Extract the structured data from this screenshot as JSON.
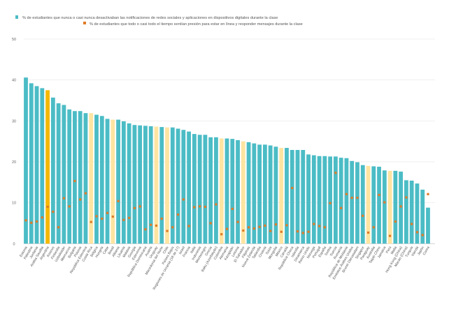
{
  "chart_data": {
    "type": "bar",
    "title": "",
    "xlabel": "",
    "ylabel": "",
    "ylim": [
      0,
      50
    ],
    "yticks": [
      0,
      10,
      20,
      30,
      40,
      50
    ],
    "grid": true,
    "legend_placement": "top-left",
    "colors": {
      "bar": "#4bbcc5",
      "bar_highlight": "#f5b800",
      "bar_region": "#fde4a1",
      "marker": "#e07b28"
    },
    "highlight_categories": [
      "Argentina"
    ],
    "region_categories": [
      "Costa Rica",
      "Brasil",
      "Uruguay",
      "Chile",
      "Colombia",
      "El Salvador",
      "México",
      "Paraguay",
      "Perú"
    ],
    "categories": [
      "Estonia",
      "Palestina",
      "Jordania",
      "Arabia Saudita",
      "Argentina",
      "Kosovo",
      "Finlandia",
      "Uzbekistán",
      "Marruecos",
      "Bulgaria",
      "Polonia",
      "República Eslovaca",
      "Costa Rica",
      "Bélgica",
      "Hungría",
      "Catar",
      "Brasil",
      "Albania",
      "Lituania",
      "Malasia",
      "Georgia",
      "Eslovenia",
      "República Dominicana",
      "Austria",
      "Uruguay",
      "Macedonia del Norte",
      "Chile",
      "Países Bajos",
      "Regiones de Ucrania (18 de 27)",
      "Israel",
      "Francia",
      "Italia",
      "Indonesia",
      "Montenegro",
      "Grecia",
      "Baku (Azerbaiyán)",
      "Colombia",
      "Alemania",
      "Kazajstán",
      "Letonia",
      "El Salvador",
      "Filipinas",
      "Nueva Zelanda",
      "Tailandia",
      "Croacia",
      "Suiza",
      "Mongolia",
      "México",
      "Canadá",
      "República Checa",
      "Islandia",
      "Dinamarca",
      "Reino Unido",
      "Noruega",
      "Portugal",
      "España",
      "Serbia",
      "Suecia",
      "Rumanía",
      "República de Moldavia",
      "Emiratos Árabes Unidos",
      "Brunei Darussalam",
      "Singapur",
      "Paraguay",
      "Australia",
      "Taipéi Chino",
      "Jamaica",
      "Perú",
      "Malta",
      "Hong Kong (China)",
      "Macao (China)",
      "Turquía",
      "Irlanda",
      "Japón",
      "Corea"
    ],
    "series": [
      {
        "name": "% de estudiantes que nunca o casi nunca desactivaban las notificaciones de redes sociales y aplicaciones en dispositivos digitales durante la clase",
        "type": "bar",
        "values": [
          40.6,
          39.2,
          38.5,
          38.0,
          37.5,
          35.7,
          34.3,
          33.9,
          32.8,
          32.4,
          32.4,
          31.9,
          31.9,
          31.5,
          31.2,
          30.5,
          30.3,
          30.3,
          29.9,
          29.4,
          29.0,
          28.9,
          28.8,
          28.7,
          28.6,
          28.5,
          28.4,
          28.4,
          28.1,
          27.8,
          27.4,
          26.8,
          26.6,
          26.6,
          26.0,
          26.0,
          25.7,
          25.7,
          25.6,
          25.3,
          25.0,
          24.8,
          24.5,
          24.2,
          24.2,
          24.0,
          23.7,
          23.4,
          23.4,
          22.9,
          22.9,
          22.9,
          21.8,
          21.6,
          21.4,
          21.4,
          21.3,
          21.3,
          21.0,
          20.9,
          20.2,
          19.9,
          19.2,
          19.0,
          18.9,
          18.8,
          17.9,
          17.8,
          17.8,
          17.6,
          15.5,
          15.4,
          14.7,
          13.2,
          8.8
        ]
      },
      {
        "name": "% de estudiantes que todo o casi todo el tiempo sentían presión para estar en línea y responder mensajes durante la clase",
        "type": "marker",
        "values": [
          5.7,
          5.1,
          5.4,
          6.4,
          9.0,
          7.8,
          4.0,
          11.1,
          9.1,
          15.3,
          10.8,
          12.3,
          5.3,
          6.7,
          6.1,
          7.5,
          6.6,
          10.4,
          5.8,
          6.3,
          8.7,
          9.1,
          3.5,
          4.6,
          4.4,
          6.1,
          3.1,
          4.0,
          7.1,
          10.8,
          4.3,
          8.9,
          9.1,
          9.0,
          5.0,
          9.6,
          2.3,
          3.6,
          8.5,
          5.3,
          3.2,
          4.0,
          3.7,
          4.1,
          4.4,
          3.1,
          4.7,
          2.9,
          4.5,
          13.6,
          3.0,
          2.6,
          2.9,
          4.8,
          4.3,
          4.0,
          9.9,
          17.3,
          8.7,
          12.1,
          11.2,
          11.2,
          6.8,
          2.7,
          4.0,
          11.9,
          10.1,
          1.9,
          5.4,
          9.1,
          11.3,
          4.8,
          2.8,
          2.1,
          12.1
        ]
      }
    ]
  }
}
